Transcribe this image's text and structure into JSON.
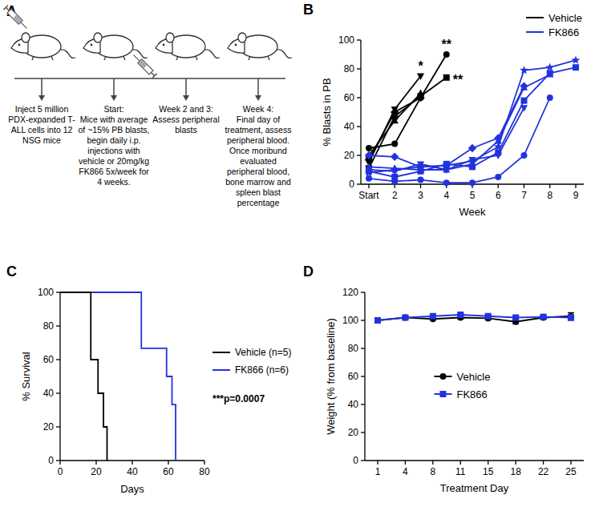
{
  "diagram": {
    "panel": "A",
    "steps": [
      {
        "text": "Inject 5 million PDX-expanded T-ALL cells into 12 NSG mice"
      },
      {
        "title": "Start:",
        "text": "Mice with average of ~15% PB blasts, begin daily i.p. injections with vehicle or 20mg/kg FK866 5x/week for 4 weeks."
      },
      {
        "title": "Week 2 and 3:",
        "text": "Assess peripheral blasts"
      },
      {
        "title": "Week 4:",
        "text": "Final day of treatment, assess peripheral blood. Once moribund evaluated peripheral blood, bone marrow and spleen blast percentage"
      }
    ]
  },
  "chart_data": [
    {
      "panel": "B",
      "type": "line",
      "x_label": "Week",
      "y_label": "% Blasts in PB",
      "categories": [
        "Start",
        "2",
        "3",
        "4",
        "5",
        "6",
        "7",
        "8",
        "9"
      ],
      "ylim": [
        0,
        100
      ],
      "yticks": [
        0,
        20,
        40,
        60,
        80,
        100
      ],
      "legend": "upper right",
      "series": [
        {
          "name": "Vehicle",
          "color": "#000000",
          "marker": "circle",
          "values": [
            25,
            28,
            60,
            90,
            null,
            null,
            null,
            null,
            null
          ]
        },
        {
          "name": "Vehicle",
          "color": "#000000",
          "marker": "square",
          "values": [
            11,
            47,
            61,
            74,
            null,
            null,
            null,
            null,
            null
          ]
        },
        {
          "name": "Vehicle",
          "color": "#000000",
          "marker": "triangle-down",
          "values": [
            15,
            52,
            75,
            null,
            null,
            null,
            null,
            null,
            null
          ]
        },
        {
          "name": "Vehicle",
          "color": "#000000",
          "marker": "diamond",
          "values": [
            17,
            50,
            60,
            null,
            null,
            null,
            null,
            null,
            null
          ]
        },
        {
          "name": "Vehicle",
          "color": "#000000",
          "marker": "triangle",
          "values": [
            20,
            44,
            63,
            null,
            null,
            null,
            null,
            null,
            null
          ]
        },
        {
          "name": "FK866",
          "color": "#2233dd",
          "marker": "circle",
          "values": [
            4,
            2,
            3,
            1,
            1,
            5,
            20,
            60,
            null
          ]
        },
        {
          "name": "FK866",
          "color": "#2233dd",
          "marker": "diamond",
          "values": [
            20,
            19,
            12,
            13,
            25,
            32,
            68,
            null,
            null
          ]
        },
        {
          "name": "FK866",
          "color": "#2233dd",
          "marker": "star",
          "values": [
            8,
            10,
            12,
            13,
            16,
            26,
            79,
            81,
            86
          ]
        },
        {
          "name": "FK866",
          "color": "#2233dd",
          "marker": "square",
          "values": [
            9,
            5,
            9,
            14,
            12,
            22,
            58,
            77,
            81
          ]
        },
        {
          "name": "FK866",
          "color": "#2233dd",
          "marker": "triangle-down",
          "values": [
            10,
            9,
            14,
            10,
            17,
            20,
            53,
            null,
            null
          ]
        },
        {
          "name": "FK866",
          "color": "#2233dd",
          "marker": "triangle",
          "values": [
            12,
            11,
            10,
            10,
            14,
            30,
            67,
            76,
            null
          ]
        }
      ],
      "annotations": [
        {
          "text": "*",
          "x": "3",
          "y": 75
        },
        {
          "text": "**",
          "x": "4",
          "y": 90
        },
        {
          "text": "**",
          "x": "4",
          "y": 74
        }
      ]
    },
    {
      "panel": "C",
      "type": "step",
      "x_label": "Days",
      "y_label": "% Survival",
      "xlim": [
        0,
        80
      ],
      "xticks": [
        0,
        20,
        40,
        60,
        80
      ],
      "ylim": [
        0,
        100
      ],
      "yticks": [
        0,
        20,
        40,
        60,
        80,
        100
      ],
      "legend": "right",
      "series": [
        {
          "name": "Vehicle (n=5)",
          "color": "#000000",
          "x": [
            0,
            17,
            21,
            24,
            26
          ],
          "values": [
            100,
            60,
            40,
            20,
            0
          ]
        },
        {
          "name": "FK866 (n=6)",
          "color": "#2233dd",
          "x": [
            0,
            45,
            59,
            62,
            64
          ],
          "values": [
            100,
            66.7,
            50,
            33.3,
            0
          ]
        }
      ],
      "annotations": [
        {
          "text": "***p=0.0007"
        }
      ]
    },
    {
      "panel": "D",
      "type": "line",
      "x_label": "Treatment Day",
      "y_label": "Weight (% from baseline)",
      "categories": [
        "1",
        "4",
        "8",
        "11",
        "15",
        "18",
        "22",
        "25"
      ],
      "ylim": [
        0,
        120
      ],
      "yticks": [
        0,
        20,
        40,
        60,
        80,
        100,
        120
      ],
      "legend": "center",
      "series": [
        {
          "name": "Vehicle",
          "color": "#000000",
          "marker": "circle",
          "values": [
            100,
            102,
            101,
            102,
            101.5,
            99,
            102,
            103
          ],
          "errors": [
            0,
            1,
            0.8,
            1,
            1,
            1.5,
            1,
            2.5
          ]
        },
        {
          "name": "FK866",
          "color": "#2233dd",
          "marker": "square",
          "values": [
            100,
            102,
            103,
            104,
            103,
            102,
            102.5,
            102
          ],
          "errors": [
            0,
            1,
            1,
            1,
            1,
            1,
            1,
            2
          ]
        }
      ]
    }
  ]
}
